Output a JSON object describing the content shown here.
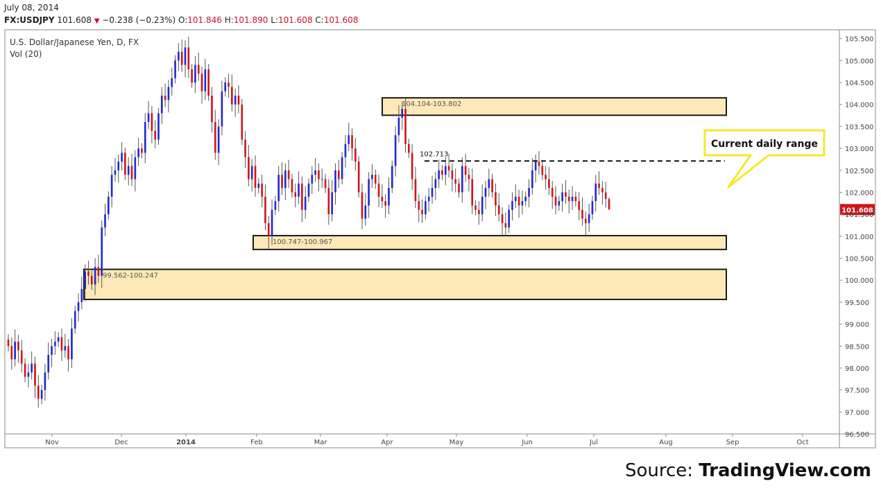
{
  "header": {
    "date": "July 08, 2014",
    "symbol": "FX:USDJPY",
    "last": "101.608",
    "change": "−0.238 (−0.23%)",
    "ohlc": {
      "o_label": "O:",
      "o": "101.846",
      "h_label": "H:",
      "h": "101.890",
      "l_label": "L:",
      "l": "101.608",
      "c_label": "C:",
      "c": "101.608"
    }
  },
  "chart_data": {
    "type": "candlestick",
    "title": "U.S. Dollar/Japanese Yen, D, FX",
    "indicator": "Vol (20)",
    "ylim": [
      96.5,
      105.7
    ],
    "y_ticks": [
      "105.500",
      "105.000",
      "104.500",
      "104.000",
      "103.500",
      "103.000",
      "102.500",
      "102.000",
      "101.500",
      "101.000",
      "100.500",
      "100.000",
      "99.500",
      "99.000",
      "98.500",
      "98.000",
      "97.500",
      "97.000",
      "96.500"
    ],
    "x_ticks": [
      "Nov",
      "Dec",
      "2014",
      "Feb",
      "Mar",
      "Apr",
      "May",
      "Jun",
      "Jul",
      "Aug",
      "Sep",
      "Oct"
    ],
    "last_price_label": "101.608",
    "colors": {
      "up": "#1f2bd0",
      "down": "#d0161a",
      "zone_fill": "#fde9b8",
      "zone_border": "#1a1a1a",
      "callout": "#f2ea2a"
    },
    "zones": [
      {
        "label": "104.104-103.802",
        "low": 103.802,
        "high": 104.104
      },
      {
        "label": "100.747-100.967",
        "low": 100.747,
        "high": 100.967
      },
      {
        "label": "99.562-100.247",
        "low": 99.562,
        "high": 100.247
      }
    ],
    "resistance": {
      "label": "102.713",
      "value": 102.713
    },
    "annotation": "Current daily range",
    "closes": [
      98.5,
      98.2,
      98.6,
      98.4,
      98.1,
      97.8,
      97.9,
      98.1,
      97.6,
      97.3,
      97.5,
      97.9,
      98.3,
      98.5,
      98.6,
      98.7,
      98.4,
      98.5,
      98.2,
      98.9,
      99.3,
      99.5,
      99.8,
      100.2,
      100.1,
      99.9,
      100.3,
      100.1,
      101.2,
      101.5,
      101.9,
      102.4,
      102.5,
      102.7,
      102.9,
      102.4,
      102.6,
      102.3,
      102.8,
      103.0,
      102.9,
      103.6,
      103.8,
      103.4,
      103.2,
      103.8,
      104.2,
      104.1,
      104.4,
      104.6,
      105.0,
      105.2,
      104.9,
      105.3,
      104.8,
      104.5,
      104.9,
      104.7,
      104.3,
      104.8,
      104.2,
      103.6,
      102.9,
      103.5,
      104.3,
      104.5,
      104.4,
      104.0,
      104.2,
      104.0,
      103.2,
      102.8,
      102.3,
      102.6,
      102.1,
      102.2,
      101.9,
      101.3,
      101.0,
      101.6,
      101.8,
      102.4,
      102.1,
      102.5,
      102.3,
      102.0,
      101.9,
      102.2,
      101.6,
      101.9,
      102.2,
      102.4,
      102.5,
      102.3,
      102.3,
      102.1,
      101.5,
      102.0,
      102.5,
      102.3,
      102.8,
      103.1,
      103.3,
      103.0,
      102.7,
      102.0,
      101.4,
      101.7,
      102.3,
      102.4,
      102.2,
      101.9,
      101.8,
      101.7,
      102.1,
      102.6,
      103.3,
      103.7,
      103.9,
      103.1,
      102.9,
      102.3,
      101.8,
      101.6,
      101.5,
      101.8,
      101.9,
      102.1,
      102.3,
      102.5,
      102.4,
      102.6,
      102.5,
      102.3,
      102.2,
      102.0,
      102.6,
      102.4,
      102.3,
      101.7,
      101.6,
      101.5,
      101.9,
      102.1,
      102.3,
      102.0,
      101.7,
      101.5,
      101.3,
      101.2,
      101.6,
      101.8,
      101.9,
      101.7,
      101.8,
      101.9,
      102.1,
      102.5,
      102.7,
      102.6,
      102.4,
      102.3,
      102.1,
      101.9,
      101.7,
      101.8,
      102.0,
      101.9,
      101.8,
      101.9,
      101.8,
      101.6,
      101.4,
      101.3,
      101.5,
      101.8,
      102.2,
      102.1,
      102.0,
      101.85,
      101.608
    ]
  }
}
